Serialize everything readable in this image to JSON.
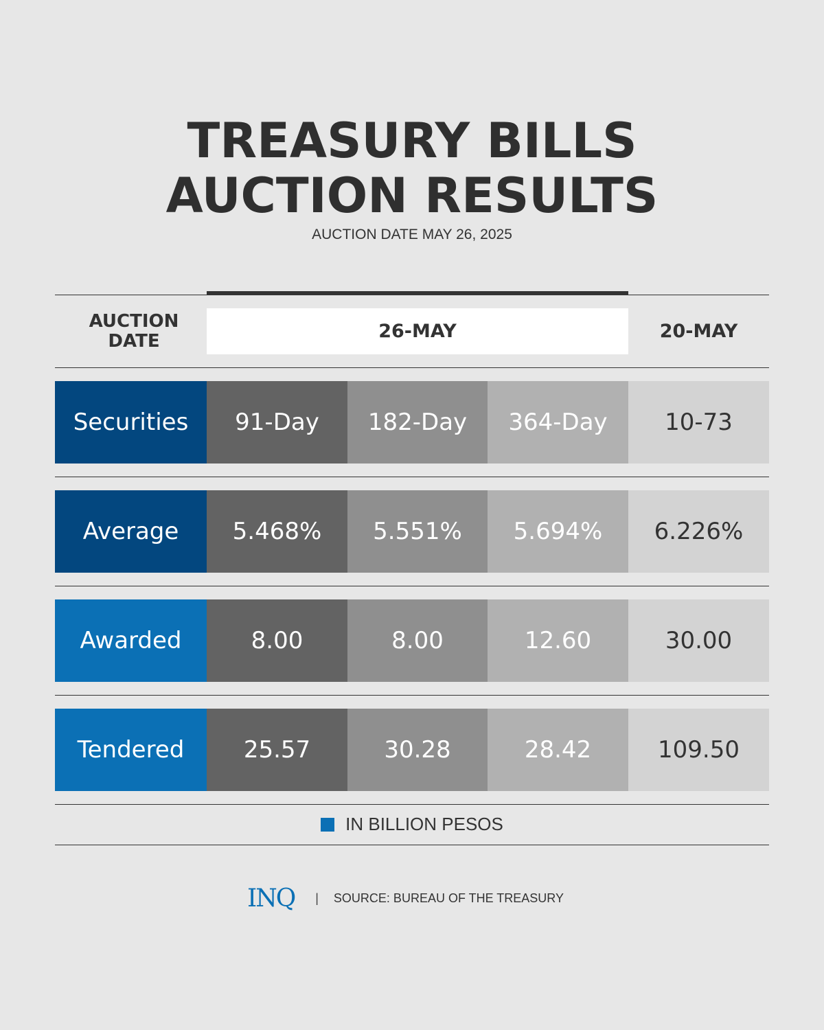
{
  "title_line1": "TREASURY BILLS",
  "title_line2": "AUCTION RESULTS",
  "subtitle": "AUCTION DATE MAY 26, 2025",
  "header": {
    "label_line1": "AUCTION",
    "label_line2": "DATE",
    "current": "26-MAY",
    "previous": "20-MAY"
  },
  "colors": {
    "dark_blue": "#03477f",
    "light_blue": "#0b70b5",
    "col_91": "#636363",
    "col_182": "#8f8f8f",
    "col_364": "#b1b1b1",
    "col_prev": "#d3d3d3"
  },
  "rows": [
    {
      "label": "Securities",
      "values": [
        "91-Day",
        "182-Day",
        "364-Day",
        "10-73"
      ]
    },
    {
      "label": "Average",
      "values": [
        "5.468%",
        "5.551%",
        "5.694%",
        "6.226%"
      ]
    },
    {
      "label": "Awarded",
      "values": [
        "8.00",
        "8.00",
        "12.60",
        "30.00"
      ]
    },
    {
      "label": "Tendered",
      "values": [
        "25.57",
        "30.28",
        "28.42",
        "109.50"
      ]
    }
  ],
  "legend": "IN BILLION PESOS",
  "footer": {
    "logo": "INQ",
    "separator": "|",
    "source": "SOURCE: BUREAU OF THE TREASURY"
  }
}
